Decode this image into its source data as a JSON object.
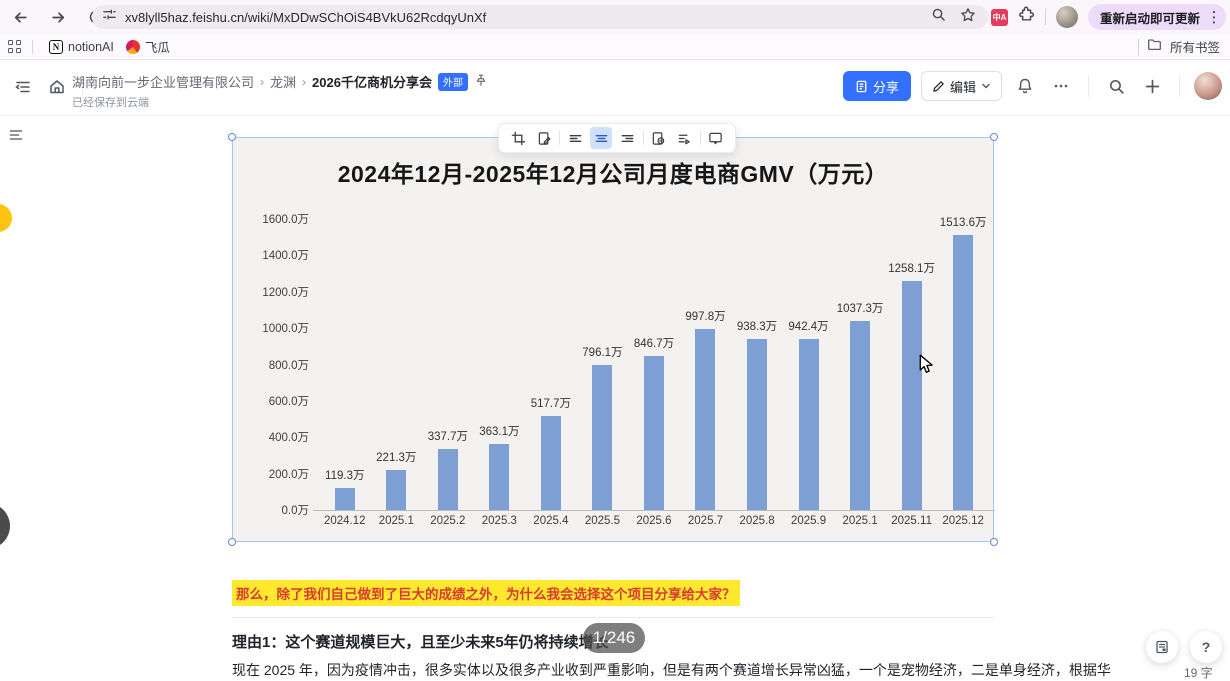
{
  "browser": {
    "url": "xv8lyll5haz.feishu.cn/wiki/MxDDwSChOiS4BVkU62RcdqyUnXf",
    "translate_icon_text": "中A",
    "relaunch_button": "重新启动即可更新",
    "bookmarks": [
      {
        "label": "notionAI",
        "icon_letter": "N"
      },
      {
        "label": "飞瓜"
      }
    ],
    "all_bookmarks_label": "所有书签"
  },
  "header": {
    "breadcrumb": [
      "湖南向前一步企业管理有限公司",
      "龙渊",
      "2026千亿商机分享会"
    ],
    "external_badge": "外部",
    "save_status": "已经保存到云端",
    "share_label": "分享",
    "edit_label": "编辑"
  },
  "chart_data": {
    "type": "bar",
    "title": "2024年12月-2025年12月公司月度电商GMV（万元）",
    "categories": [
      "2024.12",
      "2025.1",
      "2025.2",
      "2025.3",
      "2025.4",
      "2025.5",
      "2025.6",
      "2025.7",
      "2025.8",
      "2025.9",
      "2025.1",
      "2025.11",
      "2025.12"
    ],
    "values": [
      119.3,
      221.3,
      337.7,
      363.1,
      517.7,
      796.1,
      846.7,
      997.8,
      938.3,
      942.4,
      1037.3,
      1258.1,
      1513.6
    ],
    "bar_labels": [
      "119.3万",
      "221.3万",
      "337.7万",
      "363.1万",
      "517.7万",
      "796.1万",
      "846.7万",
      "997.8万",
      "938.3万",
      "942.4万",
      "1037.3万",
      "1258.1万",
      "1513.6万"
    ],
    "unit": "万元",
    "ylim": [
      0,
      1600
    ],
    "yticks_top_to_bottom": [
      "1600.0万",
      "1400.0万",
      "1200.0万",
      "1000.0万",
      "800.0万",
      "600.0万",
      "400.0万",
      "200.0万",
      "0.0万"
    ],
    "grid": false,
    "legend": null,
    "bar_color": "#7d9fd4",
    "plot_bg": "#f3f2f1"
  },
  "content": {
    "highlight_text": "那么，除了我们自己做到了巨大的成绩之外，为什么我会选择这个项目分享给大家？",
    "reason_heading": "理由1：这个赛道规模巨大，且至少未来5年仍将持续增长",
    "page_badge": "1/246",
    "body_text": "现在 2025 年，因为疫情冲击，很多实体以及很多产业收到严重影响，但是有两个赛道增长异常凶猛，一个是宠物经济，二是单身经济，根据华",
    "word_count": "19 字",
    "help_glyph": "?"
  }
}
